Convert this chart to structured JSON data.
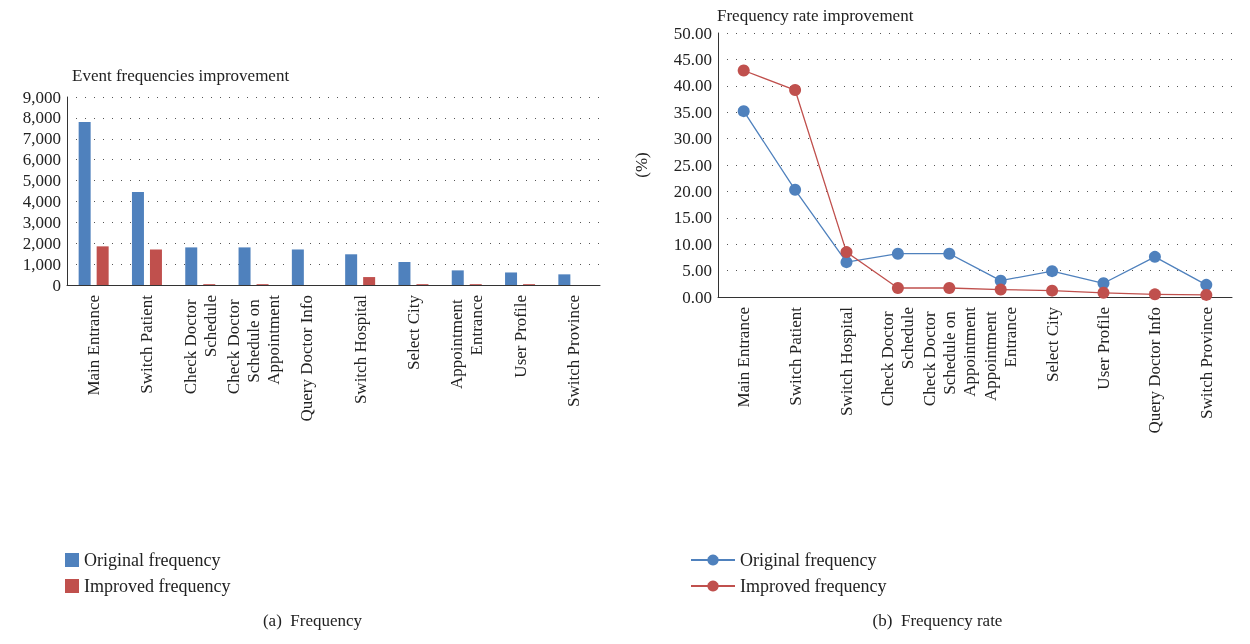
{
  "chart_data": [
    {
      "type": "bar",
      "title": "Event frequencies improvement",
      "categories": [
        "Main Entrance",
        "Switch Patient",
        "Check Doctor Schedule",
        "Check Doctor Schedule on Appointment",
        "Query Doctor Info",
        "Switch Hospital",
        "Select City",
        "Appointment Entrance",
        "User Profile",
        "Switch Province"
      ],
      "series": [
        {
          "name": "Original frequency",
          "color": "#4f81bd",
          "values": [
            7800,
            4450,
            1800,
            1800,
            1700,
            1470,
            1100,
            700,
            600,
            510
          ]
        },
        {
          "name": "Improved frequency",
          "color": "#c0504d",
          "values": [
            1850,
            1700,
            40,
            40,
            0,
            380,
            40,
            40,
            40,
            0
          ]
        }
      ],
      "ylim": [
        0,
        9000
      ],
      "yticks": [
        {
          "value": 0,
          "label": "0"
        },
        {
          "value": 1000,
          "label": "1,000"
        },
        {
          "value": 2000,
          "label": "2,000"
        },
        {
          "value": 3000,
          "label": "3,000"
        },
        {
          "value": 4000,
          "label": "4,000"
        },
        {
          "value": 5000,
          "label": "5,000"
        },
        {
          "value": 6000,
          "label": "6,000"
        },
        {
          "value": 7000,
          "label": "7,000"
        },
        {
          "value": 8000,
          "label": "8,000"
        },
        {
          "value": 9000,
          "label": "9,000"
        }
      ],
      "grid": "y",
      "legend": "bottom left",
      "annotations": [
        "(a)  Frequency"
      ]
    },
    {
      "type": "line",
      "title": "Frequency rate improvement",
      "ylabel": "(%)",
      "categories": [
        "Main Entrance",
        "Switch Patient",
        "Switch Hospital",
        "Check Doctor Schedule",
        "Check Doctor Schedule on Appointment",
        "Appointment Entrance",
        "Select City",
        "User Profile",
        "Query Doctor Info",
        "Switch Province"
      ],
      "series": [
        {
          "name": "Original frequency",
          "color": "#4f81bd",
          "values": [
            35.2,
            20.3,
            6.6,
            8.2,
            8.2,
            3.1,
            4.9,
            2.6,
            7.6,
            2.3
          ]
        },
        {
          "name": "Improved frequency",
          "color": "#c0504d",
          "values": [
            42.9,
            39.2,
            8.5,
            1.7,
            1.7,
            1.4,
            1.2,
            0.8,
            0.5,
            0.4
          ]
        }
      ],
      "ylim": [
        0,
        50
      ],
      "yticks": [
        {
          "value": 0,
          "label": "0.00"
        },
        {
          "value": 5,
          "label": "5.00"
        },
        {
          "value": 10,
          "label": "10.00"
        },
        {
          "value": 15,
          "label": "15.00"
        },
        {
          "value": 20,
          "label": "20.00"
        },
        {
          "value": 25,
          "label": "25.00"
        },
        {
          "value": 30,
          "label": "30.00"
        },
        {
          "value": 35,
          "label": "35.00"
        },
        {
          "value": 40,
          "label": "40.00"
        },
        {
          "value": 45,
          "label": "45.00"
        },
        {
          "value": 50,
          "label": "50.00"
        }
      ],
      "grid": "y",
      "legend": "bottom left",
      "marker": "circle",
      "line_style": "solid",
      "annotations": [
        "(b)  Frequency rate"
      ]
    }
  ]
}
